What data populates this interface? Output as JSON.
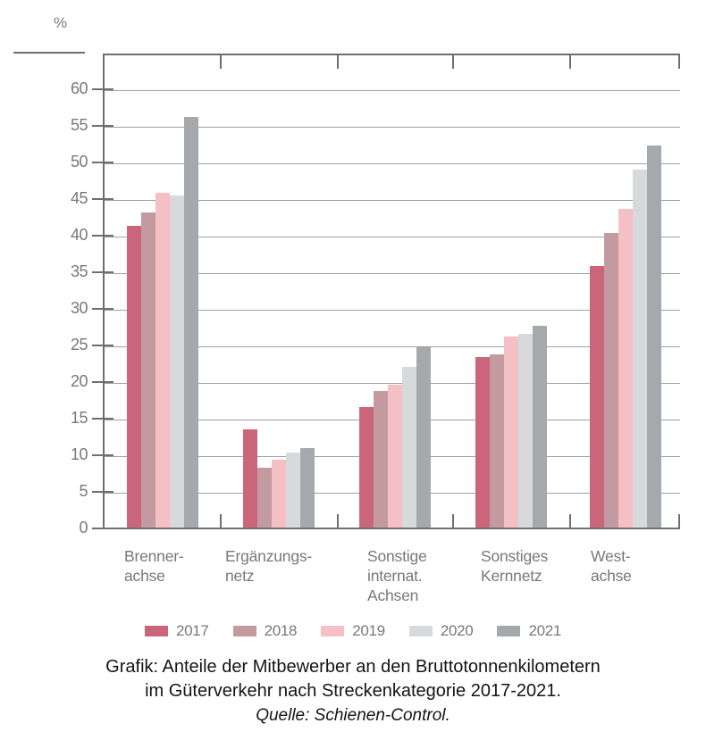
{
  "percent_label": "%",
  "chart_data": {
    "type": "bar",
    "title": "Anteile der Mitbewerber an den Bruttotonnenkilometern im Güterverkehr nach Streckenkategorie 2017-2021",
    "ylabel": "%",
    "ylim": [
      0,
      65
    ],
    "ytick_step": 5,
    "yticks": [
      0,
      5,
      10,
      15,
      20,
      25,
      30,
      35,
      40,
      45,
      50,
      55,
      60
    ],
    "grid": true,
    "legend_position": "bottom",
    "categories": [
      {
        "name": "Brennerachse",
        "label": "Brenner-\nachse"
      },
      {
        "name": "Ergänzungsnetz",
        "label": "Ergänzungs-\nnetz"
      },
      {
        "name": "Sonstige internat. Achsen",
        "label": "Sonstige\ninternat.\nAchsen"
      },
      {
        "name": "Sonstiges Kernnetz",
        "label": "Sonstiges\nKernnetz"
      },
      {
        "name": "Westachse",
        "label": "West-\nachse"
      }
    ],
    "series": [
      {
        "name": "2017",
        "color": "#cb667a",
        "values": [
          41.2,
          13.4,
          16.5,
          23.3,
          35.7
        ]
      },
      {
        "name": "2018",
        "color": "#c49aa1",
        "values": [
          43.0,
          8.2,
          18.6,
          23.7,
          40.3
        ]
      },
      {
        "name": "2019",
        "color": "#f4bfc5",
        "values": [
          45.7,
          9.3,
          19.5,
          26.1,
          43.5
        ]
      },
      {
        "name": "2020",
        "color": "#d7d9da",
        "values": [
          45.4,
          10.2,
          21.9,
          26.5,
          48.9
        ]
      },
      {
        "name": "2021",
        "color": "#a5a9ac",
        "values": [
          56.1,
          10.9,
          24.6,
          27.6,
          52.2
        ]
      }
    ]
  },
  "caption": {
    "line1": "Grafik: Anteile der Mitbewerber an den Bruttotonnenkilometern",
    "line2": "im Güterverkehr nach Streckenkategorie 2017-2021.",
    "source": "Quelle: Schienen-Control."
  },
  "colors": {
    "frame": "#6d6e71",
    "gridline": "#9ea0a3",
    "tick_text": "#77787b",
    "caption_text": "#141414"
  }
}
